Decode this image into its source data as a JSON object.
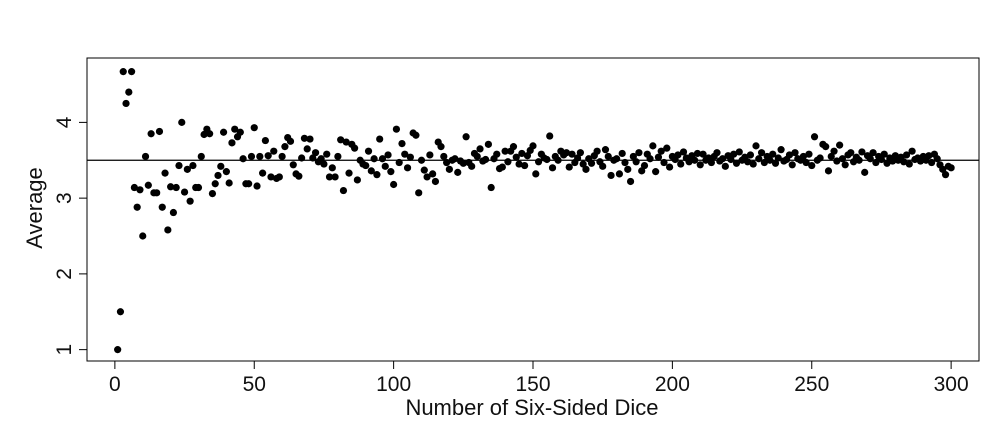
{
  "chart_data": {
    "type": "scatter",
    "title": "",
    "xlabel": "Number of Six-Sided Dice",
    "ylabel": "Average",
    "xlim": [
      -10,
      310
    ],
    "ylim": [
      0.85,
      4.85
    ],
    "xticks": [
      0,
      50,
      100,
      150,
      200,
      250,
      300
    ],
    "xtick_labels": [
      "0",
      "50",
      "100",
      "150",
      "200",
      "250",
      "300"
    ],
    "yticks": [
      1,
      2,
      3,
      4
    ],
    "ytick_labels": [
      "1",
      "2",
      "3",
      "4"
    ],
    "reference_line": {
      "y": 3.5
    },
    "grid": false,
    "legend": "none",
    "marker_color": "#000000",
    "x_start": 1,
    "values": [
      1.0,
      1.5,
      4.67,
      4.25,
      4.4,
      4.67,
      3.14,
      2.88,
      3.11,
      2.5,
      3.55,
      3.17,
      3.85,
      3.07,
      3.07,
      3.88,
      2.88,
      3.33,
      2.58,
      3.15,
      2.81,
      3.14,
      3.43,
      4.0,
      3.08,
      3.38,
      2.96,
      3.43,
      3.14,
      3.14,
      3.55,
      3.84,
      3.91,
      3.85,
      3.06,
      3.19,
      3.3,
      3.42,
      3.87,
      3.35,
      3.2,
      3.73,
      3.91,
      3.81,
      3.87,
      3.52,
      3.19,
      3.19,
      3.55,
      3.93,
      3.16,
      3.55,
      3.33,
      3.76,
      3.56,
      3.28,
      3.62,
      3.26,
      3.28,
      3.55,
      3.68,
      3.8,
      3.75,
      3.44,
      3.32,
      3.29,
      3.53,
      3.79,
      3.65,
      3.78,
      3.53,
      3.6,
      3.48,
      3.52,
      3.45,
      3.58,
      3.28,
      3.4,
      3.28,
      3.55,
      3.77,
      3.1,
      3.74,
      3.33,
      3.71,
      3.66,
      3.24,
      3.5,
      3.45,
      3.43,
      3.62,
      3.36,
      3.52,
      3.31,
      3.78,
      3.52,
      3.42,
      3.57,
      3.35,
      3.18,
      3.91,
      3.47,
      3.72,
      3.58,
      3.4,
      3.54,
      3.86,
      3.83,
      3.07,
      3.5,
      3.37,
      3.28,
      3.57,
      3.32,
      3.22,
      3.74,
      3.68,
      3.55,
      3.47,
      3.38,
      3.5,
      3.52,
      3.34,
      3.49,
      3.46,
      3.81,
      3.47,
      3.42,
      3.59,
      3.55,
      3.65,
      3.49,
      3.51,
      3.71,
      3.14,
      3.52,
      3.58,
      3.39,
      3.41,
      3.62,
      3.48,
      3.62,
      3.68,
      3.54,
      3.45,
      3.59,
      3.43,
      3.56,
      3.63,
      3.69,
      3.32,
      3.48,
      3.58,
      3.53,
      3.51,
      3.82,
      3.4,
      3.55,
      3.5,
      3.62,
      3.57,
      3.6,
      3.41,
      3.58,
      3.47,
      3.53,
      3.6,
      3.45,
      3.38,
      3.52,
      3.46,
      3.56,
      3.62,
      3.48,
      3.42,
      3.64,
      3.55,
      3.3,
      3.5,
      3.52,
      3.32,
      3.59,
      3.47,
      3.38,
      3.22,
      3.55,
      3.48,
      3.6,
      3.36,
      3.43,
      3.58,
      3.52,
      3.69,
      3.35,
      3.54,
      3.62,
      3.47,
      3.66,
      3.41,
      3.55,
      3.51,
      3.57,
      3.45,
      3.61,
      3.53,
      3.48,
      3.56,
      3.5,
      3.59,
      3.44,
      3.58,
      3.5,
      3.53,
      3.47,
      3.55,
      3.6,
      3.49,
      3.52,
      3.42,
      3.56,
      3.51,
      3.58,
      3.46,
      3.61,
      3.5,
      3.54,
      3.48,
      3.57,
      3.45,
      3.69,
      3.52,
      3.6,
      3.47,
      3.55,
      3.5,
      3.58,
      3.46,
      3.53,
      3.64,
      3.49,
      3.51,
      3.57,
      3.44,
      3.6,
      3.52,
      3.5,
      3.55,
      3.47,
      3.58,
      3.43,
      3.81,
      3.5,
      3.53,
      3.71,
      3.68,
      3.36,
      3.55,
      3.62,
      3.49,
      3.7,
      3.52,
      3.44,
      3.57,
      3.6,
      3.48,
      3.54,
      3.5,
      3.61,
      3.34,
      3.56,
      3.52,
      3.6,
      3.47,
      3.55,
      3.51,
      3.58,
      3.46,
      3.53,
      3.49,
      3.56,
      3.5,
      3.54,
      3.48,
      3.57,
      3.45,
      3.62,
      3.51,
      3.53,
      3.49,
      3.55,
      3.5,
      3.56,
      3.47,
      3.58,
      3.52,
      3.44,
      3.38,
      3.31,
      3.42,
      3.4
    ]
  }
}
